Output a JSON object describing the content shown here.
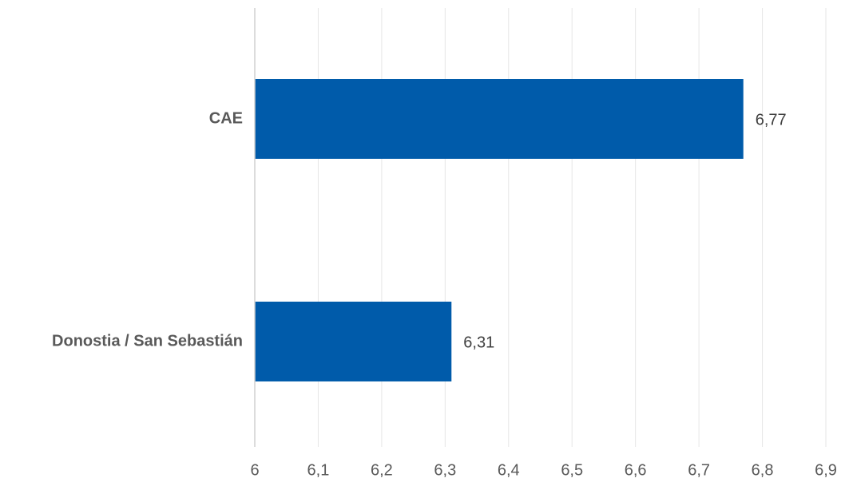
{
  "chart_data": {
    "type": "bar",
    "orientation": "horizontal",
    "categories": [
      "CAE",
      "Donostia / San Sebastián"
    ],
    "values": [
      6.77,
      6.31
    ],
    "data_labels": [
      "6,77",
      "6,31"
    ],
    "xlim": [
      6,
      6.9
    ],
    "x_ticks": [
      6,
      6.1,
      6.2,
      6.3,
      6.4,
      6.5,
      6.6,
      6.7,
      6.8,
      6.9
    ],
    "x_tick_labels": [
      "6",
      "6,1",
      "6,2",
      "6,3",
      "6,4",
      "6,5",
      "6,6",
      "6,7",
      "6,8",
      "6,9"
    ],
    "grid": true,
    "legend": "none",
    "bar_color": "#005BAA"
  }
}
